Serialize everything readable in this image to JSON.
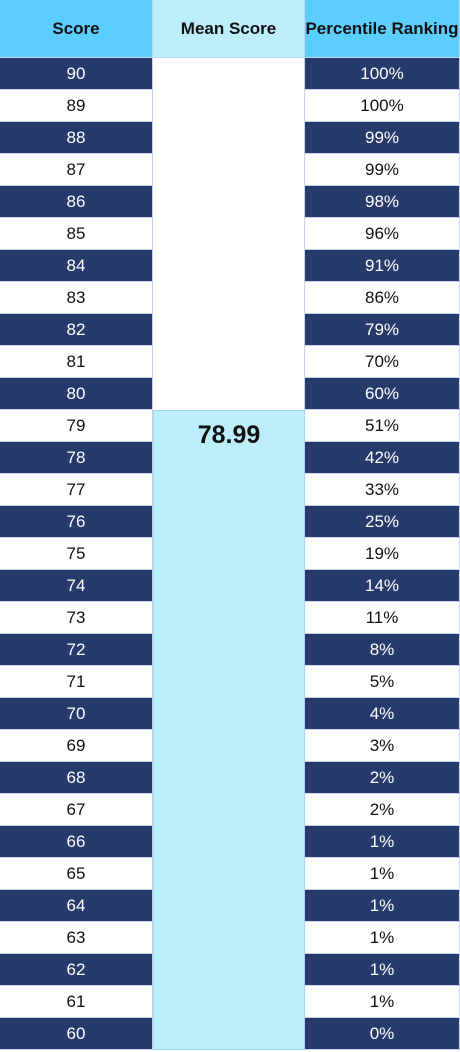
{
  "headers": {
    "score": "Score",
    "mean": "Mean Score",
    "percentile": "Percentile Ranking"
  },
  "mean_score": {
    "value": "78.99",
    "first_score_row": 79
  },
  "rows": [
    {
      "score": "90",
      "percentile": "100%"
    },
    {
      "score": "89",
      "percentile": "100%"
    },
    {
      "score": "88",
      "percentile": "99%"
    },
    {
      "score": "87",
      "percentile": "99%"
    },
    {
      "score": "86",
      "percentile": "98%"
    },
    {
      "score": "85",
      "percentile": "96%"
    },
    {
      "score": "84",
      "percentile": "91%"
    },
    {
      "score": "83",
      "percentile": "86%"
    },
    {
      "score": "82",
      "percentile": "79%"
    },
    {
      "score": "81",
      "percentile": "70%"
    },
    {
      "score": "80",
      "percentile": "60%"
    },
    {
      "score": "79",
      "percentile": "51%"
    },
    {
      "score": "78",
      "percentile": "42%"
    },
    {
      "score": "77",
      "percentile": "33%"
    },
    {
      "score": "76",
      "percentile": "25%"
    },
    {
      "score": "75",
      "percentile": "19%"
    },
    {
      "score": "74",
      "percentile": "14%"
    },
    {
      "score": "73",
      "percentile": "11%"
    },
    {
      "score": "72",
      "percentile": "8%"
    },
    {
      "score": "71",
      "percentile": "5%"
    },
    {
      "score": "70",
      "percentile": "4%"
    },
    {
      "score": "69",
      "percentile": "3%"
    },
    {
      "score": "68",
      "percentile": "2%"
    },
    {
      "score": "67",
      "percentile": "2%"
    },
    {
      "score": "66",
      "percentile": "1%"
    },
    {
      "score": "65",
      "percentile": "1%"
    },
    {
      "score": "64",
      "percentile": "1%"
    },
    {
      "score": "63",
      "percentile": "1%"
    },
    {
      "score": "62",
      "percentile": "1%"
    },
    {
      "score": "61",
      "percentile": "1%"
    },
    {
      "score": "60",
      "percentile": "0%"
    }
  ],
  "colors": {
    "header_accent": "#5ccdff",
    "mean_fill": "#bdeefb",
    "row_dark": "#263a6b",
    "row_light": "#ffffff"
  }
}
